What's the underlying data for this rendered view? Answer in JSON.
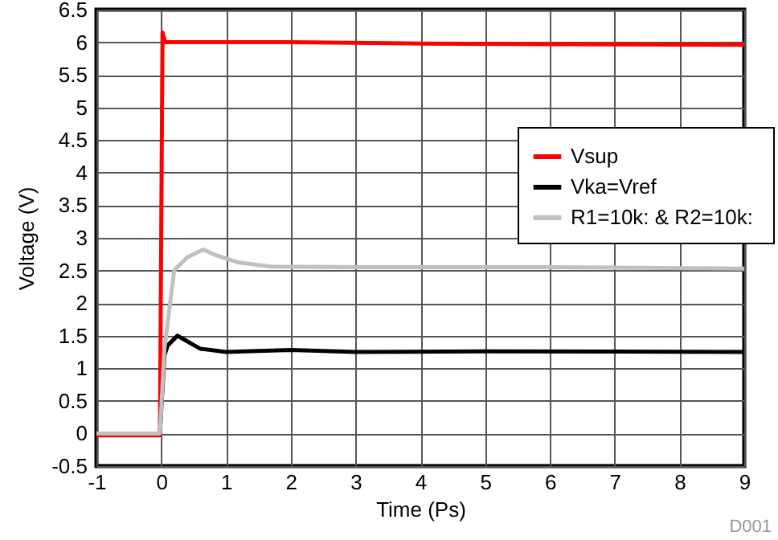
{
  "chart_data": {
    "type": "line",
    "xlabel": "Time (Ps)",
    "ylabel": "Voltage (V)",
    "xlim": [
      -1,
      9
    ],
    "xticks": [
      -1,
      0,
      1,
      2,
      3,
      4,
      5,
      6,
      7,
      8,
      9
    ],
    "ylim": [
      -0.5,
      6.5
    ],
    "yticks": [
      -0.5,
      0,
      0.5,
      1,
      1.5,
      2,
      2.5,
      3,
      3.5,
      4,
      4.5,
      5,
      5.5,
      6,
      6.5
    ],
    "grid": true,
    "legend": "top right",
    "marker": "none",
    "line_style": "solid",
    "annotations": [
      "D001"
    ],
    "series": [
      {
        "name": "Vsup",
        "color": "#ff0000",
        "x": [
          -1,
          -0.02,
          0.02,
          0.06,
          1,
          2,
          4,
          6,
          9
        ],
        "values": [
          -0.03,
          -0.03,
          6.15,
          6.0,
          6.0,
          6.0,
          5.98,
          5.97,
          5.96
        ]
      },
      {
        "name": "Vka=Vref",
        "color": "#000000",
        "x": [
          -1,
          -0.02,
          0.05,
          0.1,
          0.25,
          0.6,
          1,
          2,
          3,
          5,
          9
        ],
        "values": [
          0,
          0,
          1.2,
          1.35,
          1.5,
          1.3,
          1.25,
          1.28,
          1.25,
          1.26,
          1.25
        ]
      },
      {
        "name": "R1=10k:  & R2=10k:",
        "color": "#c0c0c0",
        "x": [
          -1,
          -0.02,
          0.05,
          0.2,
          0.4,
          0.65,
          0.8,
          1.2,
          1.7,
          3,
          6,
          9
        ],
        "values": [
          0,
          0,
          1.3,
          2.5,
          2.7,
          2.82,
          2.75,
          2.62,
          2.56,
          2.55,
          2.55,
          2.53
        ]
      }
    ]
  }
}
